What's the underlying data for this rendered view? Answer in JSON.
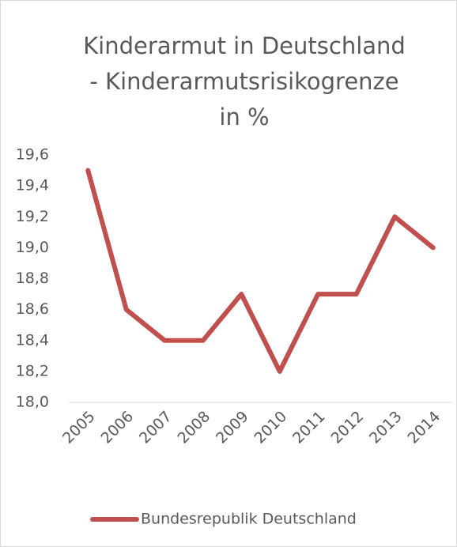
{
  "chart_data": {
    "type": "line",
    "title": [
      "Kinderarmut in Deutschland",
      "- Kinderarmutsrisikogrenze",
      "in %"
    ],
    "categories": [
      "2005",
      "2006",
      "2007",
      "2008",
      "2009",
      "2010",
      "2011",
      "2012",
      "2013",
      "2014"
    ],
    "series": [
      {
        "name": "Bundesrepublik Deutschland",
        "color": "#c0504d",
        "values": [
          19.5,
          18.6,
          18.4,
          18.4,
          18.7,
          18.2,
          18.7,
          18.7,
          19.2,
          19.0
        ]
      }
    ],
    "ylim": [
      18.0,
      19.6
    ],
    "yticks": [
      {
        "value": 18.0,
        "label": "18,0"
      },
      {
        "value": 18.2,
        "label": "18,2"
      },
      {
        "value": 18.4,
        "label": "18,4"
      },
      {
        "value": 18.6,
        "label": "18,6"
      },
      {
        "value": 18.8,
        "label": "18,8"
      },
      {
        "value": 19.0,
        "label": "19,0"
      },
      {
        "value": 19.2,
        "label": "19,2"
      },
      {
        "value": 19.4,
        "label": "19,4"
      },
      {
        "value": 19.6,
        "label": "19,6"
      }
    ],
    "grid": false,
    "legend": "bottom"
  }
}
